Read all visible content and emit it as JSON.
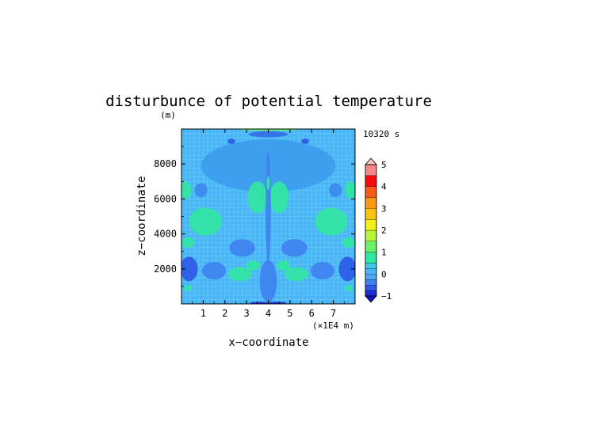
{
  "chart_data": {
    "type": "heatmap",
    "title": "disturbunce of potential temperature",
    "ylabel_unit": "(m)",
    "xlabel": "x−coordinate",
    "ylabel": "z−coordinate",
    "x_unit": "(×1E4 m)",
    "time_label": "10320 s",
    "xlim": [
      0,
      8
    ],
    "ylim": [
      0,
      10000
    ],
    "x_ticks": [
      1,
      2,
      3,
      4,
      5,
      6,
      7
    ],
    "y_ticks": [
      2000,
      4000,
      6000,
      8000
    ],
    "colorbar": {
      "min": -1,
      "max": 5,
      "ticks": [
        -1,
        0,
        1,
        2,
        3,
        4,
        5
      ],
      "levels": [
        {
          "from": -1.0,
          "to": -0.75,
          "color": "#1c2ed8"
        },
        {
          "from": -0.75,
          "to": -0.5,
          "color": "#2c5ae6"
        },
        {
          "from": -0.5,
          "to": -0.25,
          "color": "#3f82ef"
        },
        {
          "from": -0.25,
          "to": 0.0,
          "color": "#4fa8f4"
        },
        {
          "from": 0.0,
          "to": 0.25,
          "color": "#48b6f6"
        },
        {
          "from": 0.25,
          "to": 0.5,
          "color": "#3fc8ea"
        },
        {
          "from": 0.5,
          "to": 1.0,
          "color": "#32e6a2"
        },
        {
          "from": 1.0,
          "to": 1.5,
          "color": "#6cf06c"
        },
        {
          "from": 1.5,
          "to": 2.0,
          "color": "#b8f43c"
        },
        {
          "from": 2.0,
          "to": 2.5,
          "color": "#f4f020"
        },
        {
          "from": 2.5,
          "to": 3.0,
          "color": "#f8c218"
        },
        {
          "from": 3.0,
          "to": 3.5,
          "color": "#f89a14"
        },
        {
          "from": 3.5,
          "to": 4.0,
          "color": "#f85a18"
        },
        {
          "from": 4.0,
          "to": 4.5,
          "color": "#f40c0c"
        },
        {
          "from": 4.5,
          "to": 5.0,
          "color": "#f48888"
        }
      ],
      "under_color": "#1018c8",
      "over_color": "#f8c8c8"
    },
    "field": {
      "background_value": 0.1,
      "background_color": "#48b6f6",
      "grid_color": "#6ccaf8",
      "features": [
        {
          "value": -0.1,
          "color": "#3d9cee",
          "center": [
            4.0,
            7900
          ],
          "rx": 3.1,
          "ry": 1500
        },
        {
          "value": -0.6,
          "color": "#2c5ae6",
          "center": [
            2.3,
            9300
          ],
          "rx": 0.18,
          "ry": 150
        },
        {
          "value": -0.6,
          "color": "#2c5ae6",
          "center": [
            5.7,
            9300
          ],
          "rx": 0.18,
          "ry": 150
        },
        {
          "value": -0.4,
          "color": "#3370e8",
          "center": [
            4.0,
            9700
          ],
          "rx": 0.9,
          "ry": 180
        },
        {
          "value": -0.3,
          "color": "#3d8aee",
          "center": [
            0.9,
            6500
          ],
          "rx": 0.3,
          "ry": 400
        },
        {
          "value": -0.3,
          "color": "#3d8aee",
          "center": [
            7.1,
            6500
          ],
          "rx": 0.3,
          "ry": 400
        },
        {
          "value": 0.7,
          "color": "#32e6a2",
          "center": [
            0.2,
            6500
          ],
          "rx": 0.25,
          "ry": 500
        },
        {
          "value": 0.7,
          "color": "#32e6a2",
          "center": [
            7.8,
            6500
          ],
          "rx": 0.25,
          "ry": 500
        },
        {
          "value": 0.7,
          "color": "#32e6a2",
          "center": [
            3.5,
            6100
          ],
          "rx": 0.45,
          "ry": 900
        },
        {
          "value": 0.7,
          "color": "#32e6a2",
          "center": [
            4.5,
            6100
          ],
          "rx": 0.45,
          "ry": 900
        },
        {
          "value": 0.7,
          "color": "#32e6a2",
          "center": [
            1.1,
            4700
          ],
          "rx": 0.75,
          "ry": 800
        },
        {
          "value": 0.7,
          "color": "#32e6a2",
          "center": [
            6.9,
            4700
          ],
          "rx": 0.75,
          "ry": 800
        },
        {
          "value": 0.6,
          "color": "#32e6a2",
          "center": [
            0.3,
            3500
          ],
          "rx": 0.3,
          "ry": 300
        },
        {
          "value": 0.6,
          "color": "#32e6a2",
          "center": [
            7.7,
            3500
          ],
          "rx": 0.3,
          "ry": 300
        },
        {
          "value": -0.3,
          "color": "#3f82ef",
          "center": [
            2.8,
            3200
          ],
          "rx": 0.6,
          "ry": 500
        },
        {
          "value": -0.3,
          "color": "#3f82ef",
          "center": [
            5.2,
            3200
          ],
          "rx": 0.6,
          "ry": 500
        },
        {
          "value": -0.8,
          "color": "#2c5ae6",
          "center": [
            0.35,
            2000
          ],
          "rx": 0.4,
          "ry": 700
        },
        {
          "value": -0.8,
          "color": "#2c5ae6",
          "center": [
            7.65,
            2000
          ],
          "rx": 0.4,
          "ry": 700
        },
        {
          "value": -0.3,
          "color": "#3f82ef",
          "center": [
            1.5,
            1900
          ],
          "rx": 0.55,
          "ry": 500
        },
        {
          "value": -0.3,
          "color": "#3f82ef",
          "center": [
            6.5,
            1900
          ],
          "rx": 0.55,
          "ry": 500
        },
        {
          "value": 0.6,
          "color": "#32e6a2",
          "center": [
            2.7,
            1700
          ],
          "rx": 0.55,
          "ry": 400
        },
        {
          "value": 0.6,
          "color": "#32e6a2",
          "center": [
            5.3,
            1700
          ],
          "rx": 0.55,
          "ry": 400
        },
        {
          "value": 0.6,
          "color": "#32e6a2",
          "center": [
            3.3,
            2200
          ],
          "rx": 0.3,
          "ry": 300
        },
        {
          "value": 0.6,
          "color": "#32e6a2",
          "center": [
            4.7,
            2200
          ],
          "rx": 0.3,
          "ry": 300
        },
        {
          "value": -0.4,
          "color": "#3f82ef",
          "center": [
            4.0,
            1300
          ],
          "rx": 0.4,
          "ry": 1200
        },
        {
          "value": -0.3,
          "color": "#3f82ef",
          "center": [
            4.0,
            5500
          ],
          "rx": 0.12,
          "ry": 3200
        },
        {
          "value": 0.6,
          "color": "#32e6a2",
          "center": [
            4.0,
            6900
          ],
          "rx": 0.08,
          "ry": 400
        },
        {
          "value": 0.6,
          "color": "#32e6a2",
          "center": [
            0.3,
            900
          ],
          "rx": 0.2,
          "ry": 150
        },
        {
          "value": 0.6,
          "color": "#32e6a2",
          "center": [
            7.7,
            900
          ],
          "rx": 0.2,
          "ry": 150
        },
        {
          "value": -0.9,
          "color": "#1c2ed8",
          "center": [
            3.6,
            60
          ],
          "rx": 0.45,
          "ry": 60
        },
        {
          "value": -0.9,
          "color": "#1c2ed8",
          "center": [
            4.4,
            60
          ],
          "rx": 0.45,
          "ry": 60
        },
        {
          "value": 1.3,
          "color": "#6cf06c",
          "center": [
            4.0,
            9950
          ],
          "rx": 1.3,
          "ry": 50
        }
      ]
    }
  }
}
